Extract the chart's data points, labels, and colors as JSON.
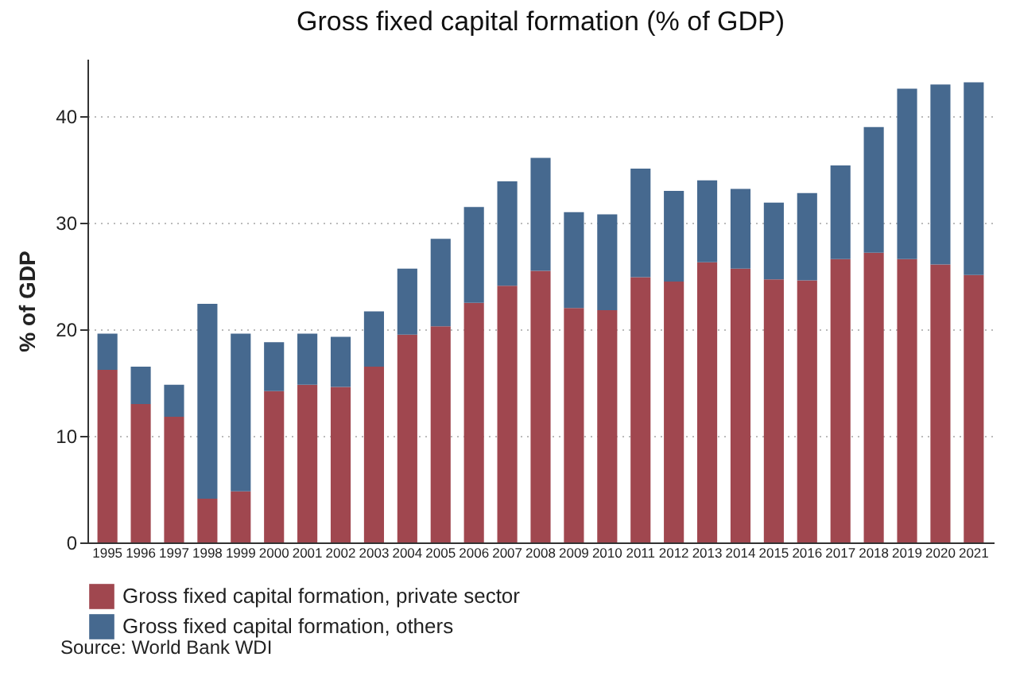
{
  "chart_data": {
    "type": "bar",
    "title": "Gross fixed capital formation (% of GDP)",
    "ylabel": "% of GDP",
    "categories": [
      "1995",
      "1996",
      "1997",
      "1998",
      "1999",
      "2000",
      "2001",
      "2002",
      "2003",
      "2004",
      "2005",
      "2006",
      "2007",
      "2008",
      "2009",
      "2010",
      "2011",
      "2012",
      "2013",
      "2014",
      "2015",
      "2016",
      "2017",
      "2018",
      "2019",
      "2020",
      "2021"
    ],
    "stacked": true,
    "series": [
      {
        "name": "Gross fixed capital formation, private sector",
        "color": "#a0474f",
        "values": [
          16.2,
          13.0,
          11.8,
          4.1,
          4.8,
          14.2,
          14.8,
          14.6,
          16.5,
          19.5,
          20.3,
          22.5,
          24.1,
          25.5,
          22.0,
          21.8,
          24.9,
          24.5,
          26.3,
          25.7,
          24.7,
          24.6,
          26.6,
          27.2,
          26.6,
          26.1,
          25.1
        ]
      },
      {
        "name": "Gross fixed capital formation, others",
        "color": "#46698f",
        "values": [
          3.4,
          3.5,
          3.0,
          18.3,
          14.8,
          4.6,
          4.8,
          4.7,
          5.2,
          6.2,
          8.2,
          9.0,
          9.8,
          10.6,
          9.0,
          9.0,
          10.2,
          8.5,
          7.7,
          7.5,
          7.2,
          8.2,
          8.8,
          11.8,
          16.0,
          16.9,
          18.1
        ]
      }
    ],
    "ylim": [
      0,
      45.4
    ],
    "yticks": [
      0,
      10,
      20,
      30,
      40
    ],
    "grid": "y",
    "legend": "bottom",
    "annotations": [
      "Source: World Bank WDI"
    ]
  }
}
